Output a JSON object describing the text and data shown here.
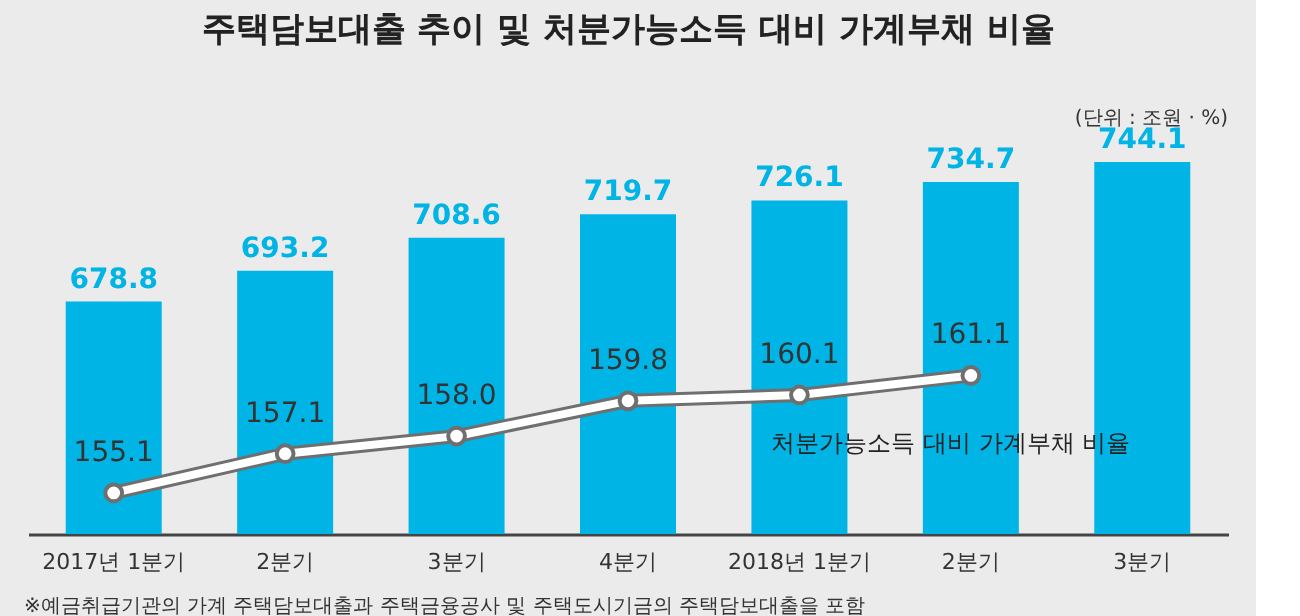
{
  "chart_data": {
    "type": "bar",
    "title": "주택담보대출 추이 및 처분가능소득 대비 가계부채 비율",
    "annotations": [
      "(단위 : 조원 · %)",
      "※예금취급기관의 가계 주택담보대출과 주택금융공사 및 주택도시기금의 주택담보대출을 포함"
    ],
    "categories": [
      "2017년 1분기",
      "2분기",
      "3분기",
      "4분기",
      "2018년 1분기",
      "2분기",
      "3분기"
    ],
    "series": [
      {
        "color": "#00b4e6",
        "values": [
          678.8,
          693.2,
          708.6,
          719.7,
          726.1,
          734.7,
          744.1
        ]
      },
      {
        "type": "line",
        "axis": "y2",
        "name": "처분가능소득 대비 가계부채 비율",
        "color": "#ffffff",
        "values": [
          155.1,
          157.1,
          158.0,
          159.8,
          160.1,
          161.1,
          null
        ],
        "value_labels": [
          "155.1",
          "157.1",
          "158.0",
          "159.8",
          "160.1",
          "161.1",
          null
        ]
      }
    ],
    "ylim": [
      570,
      744.1
    ],
    "y2lim": [
      153,
      172
    ],
    "data_labels": true,
    "marker": "circle"
  }
}
